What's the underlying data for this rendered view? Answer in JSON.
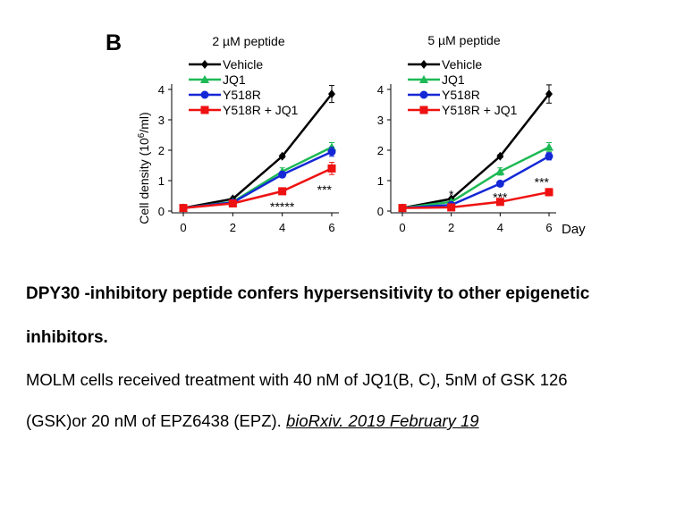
{
  "panel_letter": "B",
  "x_unit_label": "Day",
  "chart_data": [
    {
      "type": "line",
      "title": "2 µM peptide",
      "xlabel": "",
      "ylabel_prefix": "Cell density (10",
      "ylabel_sup": "6",
      "ylabel_suffix": "/ml)",
      "x": [
        0,
        2,
        4,
        6
      ],
      "xlim": [
        0,
        6
      ],
      "ylim": [
        0,
        4
      ],
      "xticks": [
        "0",
        "2",
        "4",
        "6"
      ],
      "yticks": [
        "0",
        "1",
        "2",
        "3",
        "4"
      ],
      "grid": false,
      "legend_position": "top-left",
      "series": [
        {
          "name": "Vehicle",
          "color": "#000000",
          "marker": "diamond",
          "values": [
            0.1,
            0.4,
            1.8,
            3.85
          ],
          "errors": [
            0,
            0.03,
            0.05,
            0.28
          ]
        },
        {
          "name": "JQ1",
          "color": "#1db954",
          "marker": "triangle",
          "values": [
            0.1,
            0.3,
            1.3,
            2.1
          ],
          "errors": [
            0,
            0.03,
            0.12,
            0.15
          ]
        },
        {
          "name": "Y518R",
          "color": "#1428d6",
          "marker": "circle",
          "values": [
            0.1,
            0.28,
            1.2,
            1.95
          ],
          "errors": [
            0,
            0.03,
            0.1,
            0.15
          ]
        },
        {
          "name": "Y518R + JQ1",
          "color": "#ee1111",
          "marker": "square",
          "values": [
            0.1,
            0.25,
            0.65,
            1.4
          ],
          "errors": [
            0,
            0.03,
            0.05,
            0.2
          ]
        }
      ],
      "annotations": [
        {
          "text": "*****",
          "x": 4,
          "y": 0.15
        },
        {
          "text": "***",
          "x": 6,
          "y": 0.7
        }
      ]
    },
    {
      "type": "line",
      "title": "5 µM peptide",
      "xlabel": "Day",
      "x": [
        0,
        2,
        4,
        6
      ],
      "xlim": [
        0,
        6
      ],
      "ylim": [
        0,
        4
      ],
      "xticks": [
        "0",
        "2",
        "4",
        "6"
      ],
      "yticks": [
        "0",
        "1",
        "2",
        "3",
        "4"
      ],
      "grid": false,
      "legend_position": "top-left",
      "series": [
        {
          "name": "Vehicle",
          "color": "#000000",
          "marker": "diamond",
          "values": [
            0.1,
            0.4,
            1.8,
            3.85
          ],
          "errors": [
            0,
            0.03,
            0.05,
            0.3
          ]
        },
        {
          "name": "JQ1",
          "color": "#1db954",
          "marker": "triangle",
          "values": [
            0.1,
            0.3,
            1.3,
            2.1
          ],
          "errors": [
            0,
            0.03,
            0.12,
            0.15
          ]
        },
        {
          "name": "Y518R",
          "color": "#1428d6",
          "marker": "circle",
          "values": [
            0.1,
            0.2,
            0.9,
            1.8
          ],
          "errors": [
            0,
            0.03,
            0.06,
            0.12
          ]
        },
        {
          "name": "Y518R + JQ1",
          "color": "#ee1111",
          "marker": "square",
          "values": [
            0.1,
            0.12,
            0.3,
            0.62
          ],
          "errors": [
            0,
            0.02,
            0.05,
            0.12
          ]
        }
      ],
      "annotations": [
        {
          "text": "*",
          "x": 2,
          "y": 0.55
        },
        {
          "text": "***",
          "x": 4,
          "y": 0.45
        },
        {
          "text": "***",
          "x": 6,
          "y": 0.95
        }
      ]
    }
  ],
  "caption": {
    "title_line1": "DPY30 -inhibitory peptide confers hypersensitivity to other epigenetic",
    "title_line2": "inhibitors.",
    "body_line1": "MOLM cells received treatment with 40 nM of JQ1(B, C), 5nM of GSK 126",
    "body_line2_prefix": "(GSK)or 20 nM of EPZ6438 (EPZ). ",
    "citation": "bioRxiv. 2019 February 19"
  }
}
